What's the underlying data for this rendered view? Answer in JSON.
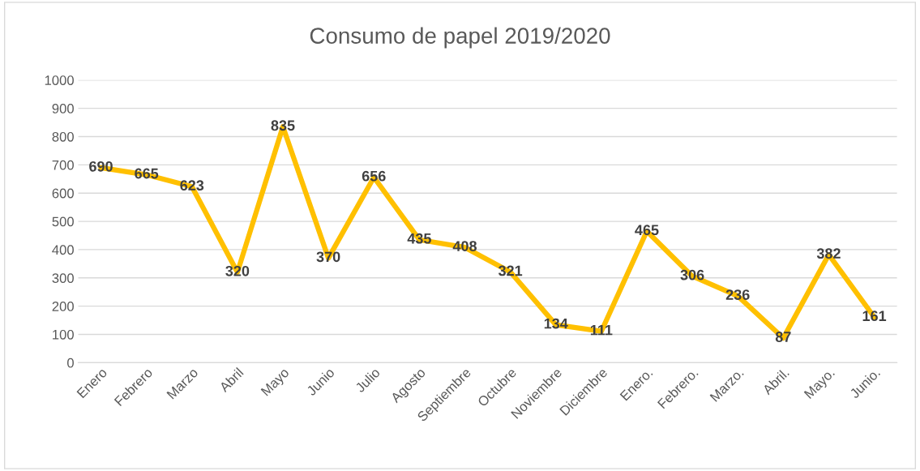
{
  "chart_data": {
    "type": "line",
    "title": "Consumo de papel 2019/2020",
    "categories": [
      "Enero",
      "Febrero",
      "Marzo",
      "Abril",
      "Mayo",
      "Junio",
      "Julio",
      "Agosto",
      "Septiembre",
      "Octubre",
      "Noviembre",
      "Diciembre",
      "Enero.",
      "Febrero.",
      "Marzo.",
      "Abril.",
      "Mayo.",
      "Junio."
    ],
    "values": [
      690,
      665,
      623,
      320,
      835,
      370,
      656,
      435,
      408,
      321,
      134,
      111,
      465,
      306,
      236,
      87,
      382,
      161
    ],
    "color": "#ffc000",
    "ylim": [
      0,
      1000
    ],
    "yticks": [
      0,
      100,
      200,
      300,
      400,
      500,
      600,
      700,
      800,
      900,
      1000
    ],
    "grid": "y",
    "data_labels": true,
    "marker": "none",
    "line_style": "solid"
  }
}
